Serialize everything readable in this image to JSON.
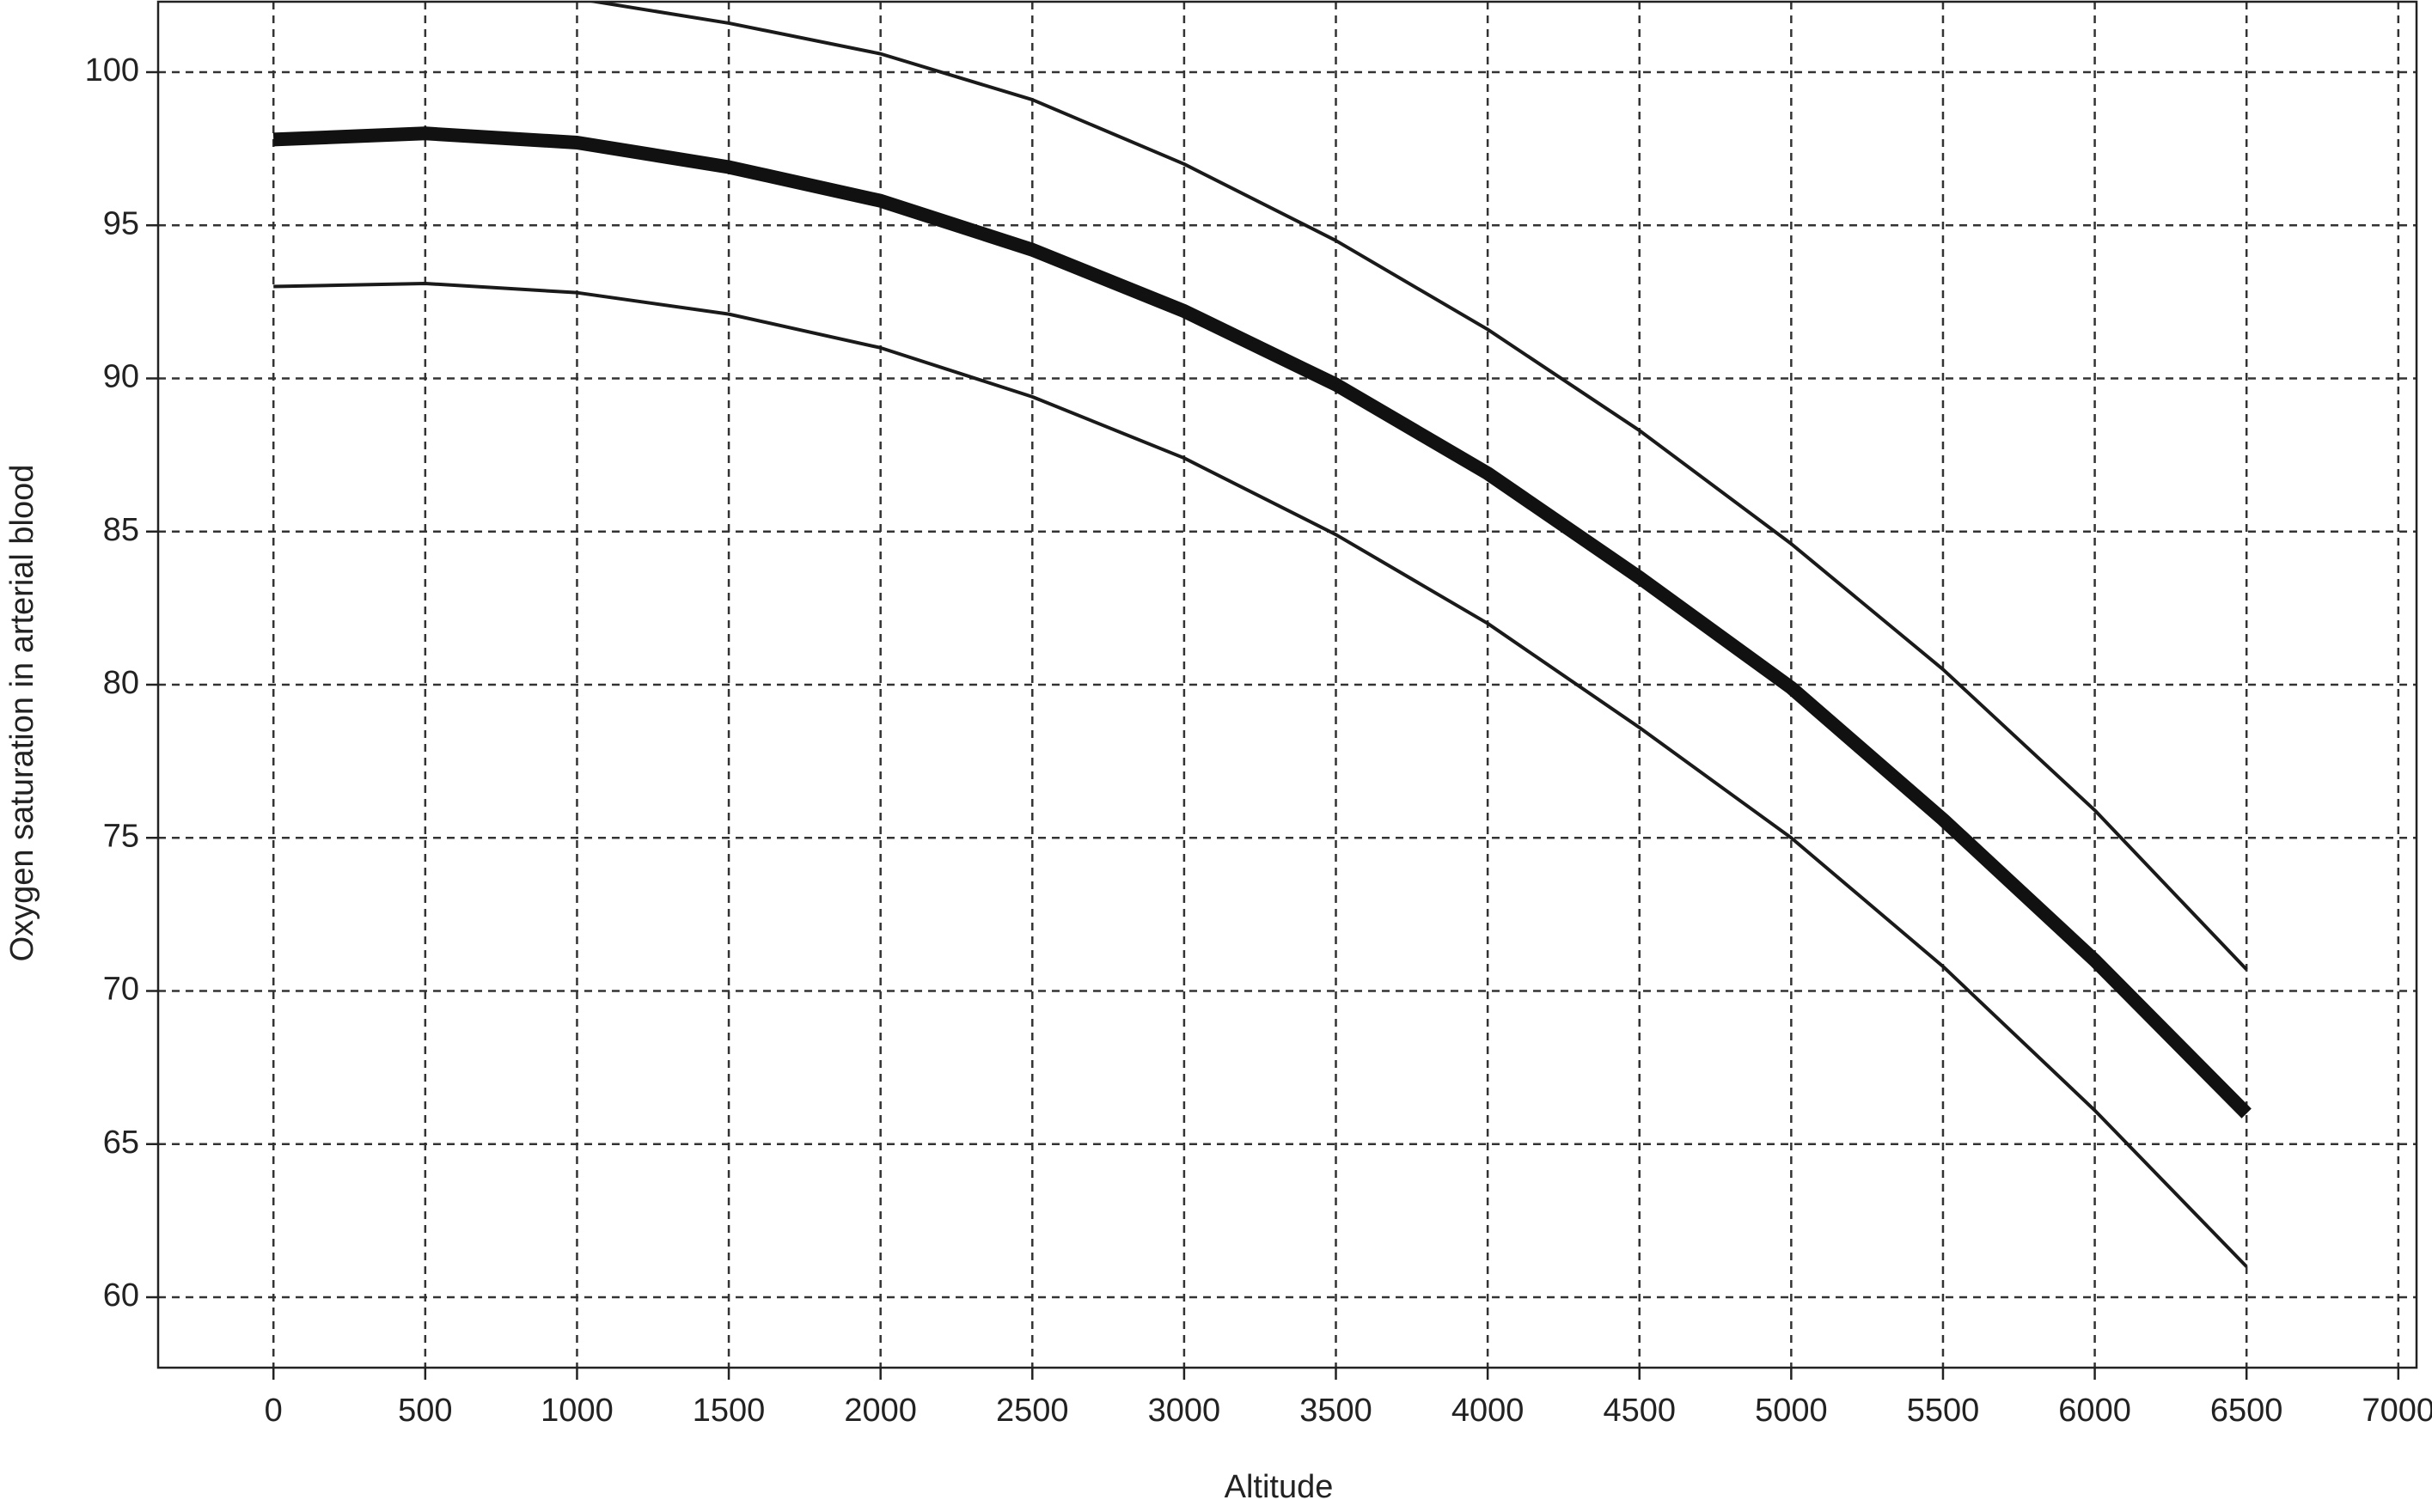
{
  "chart_data": {
    "type": "line",
    "x_label": "Altitude",
    "y_label": "Oxygen saturation in arterial blood",
    "x": [
      0,
      500,
      1000,
      1500,
      2000,
      2500,
      3000,
      3500,
      4000,
      4500,
      5000,
      5500,
      6000,
      6500
    ],
    "series": [
      {
        "color": "#1a1a1a",
        "width": "thin",
        "values": [
          null,
          null,
          102.4,
          101.6,
          100.6,
          99.1,
          97.0,
          94.5,
          91.6,
          88.3,
          84.6,
          80.5,
          75.9,
          70.7
        ]
      },
      {
        "color": "#111111",
        "width": "thick",
        "values": [
          97.8,
          98.0,
          97.7,
          96.9,
          95.8,
          94.2,
          92.2,
          89.8,
          86.9,
          83.5,
          79.9,
          75.6,
          71.0,
          66.0
        ]
      },
      {
        "color": "#1a1a1a",
        "width": "thin",
        "values": [
          93.0,
          93.1,
          92.8,
          92.1,
          91.0,
          89.4,
          87.4,
          84.9,
          82.0,
          78.6,
          75.0,
          70.8,
          66.1,
          61.0
        ]
      }
    ],
    "xlim": [
      -380,
      7060
    ],
    "ylim": [
      57.7,
      102.3
    ],
    "xticks": [
      0,
      500,
      1000,
      1500,
      2000,
      2500,
      3000,
      3500,
      4000,
      4500,
      5000,
      5500,
      6000,
      6500,
      7000
    ],
    "yticks": [
      60,
      65,
      70,
      75,
      80,
      85,
      90,
      95,
      100
    ],
    "grid": true
  }
}
